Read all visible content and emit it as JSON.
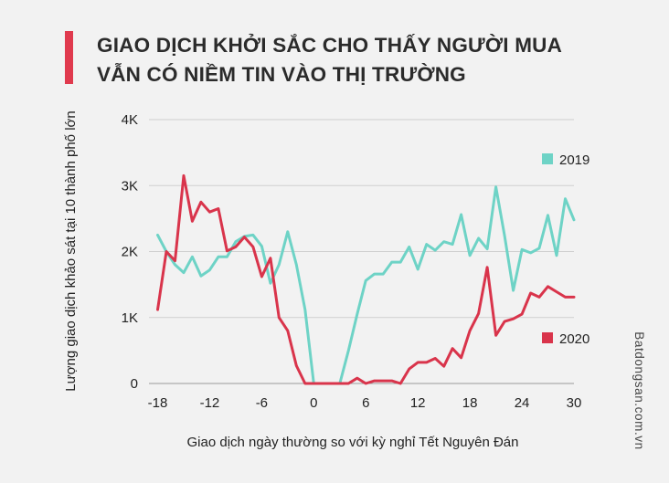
{
  "title_lines": [
    "GIAO DỊCH KHỞI SẮC CHO THẤY NGƯỜI MUA",
    "VẪN CÓ NIỀM TIN VÀO THỊ TRƯỜNG"
  ],
  "watermark": "Batdongsan.com.vn",
  "colors": {
    "accent": "#e03a4e",
    "series_2019": "#6ed3c6",
    "series_2020": "#d9344b",
    "grid": "#cfcfcf"
  },
  "chart_data": {
    "type": "line",
    "title": "GIAO DỊCH KHỞI SẮC CHO THẤY NGƯỜI MUA VẪN CÓ NIỀM TIN VÀO THỊ TRƯỜNG",
    "xlabel": "Giao dịch ngày thường so với kỳ nghỉ Tết Nguyên Đán",
    "ylabel": "Lượng giao dịch khảo sát tại 10 thành phố lớn",
    "xlim": [
      -19,
      30
    ],
    "ylim": [
      0,
      4000
    ],
    "x_ticks": [
      -18,
      -12,
      -6,
      0,
      6,
      12,
      18,
      24,
      30
    ],
    "x_tick_labels": [
      "-18",
      "-12",
      "-6",
      "0",
      "6",
      "12",
      "18",
      "24",
      "30"
    ],
    "y_ticks": [
      0,
      1000,
      2000,
      3000,
      4000
    ],
    "y_tick_labels": [
      "0",
      "1K",
      "2K",
      "3K",
      "4K"
    ],
    "grid": "horizontal",
    "legend": "inline-right",
    "series": [
      {
        "name": "2019",
        "color": "#6ed3c6",
        "points": [
          [
            -18,
            2250
          ],
          [
            -17,
            2000
          ],
          [
            -16,
            1800
          ],
          [
            -15,
            1680
          ],
          [
            -14,
            1920
          ],
          [
            -13,
            1630
          ],
          [
            -12,
            1720
          ],
          [
            -11,
            1920
          ],
          [
            -10,
            1920
          ],
          [
            -9,
            2150
          ],
          [
            -8,
            2230
          ],
          [
            -7,
            2250
          ],
          [
            -6,
            2080
          ],
          [
            -5,
            1520
          ],
          [
            -4,
            1800
          ],
          [
            -3,
            2300
          ],
          [
            -2,
            1800
          ],
          [
            -1,
            1120
          ],
          [
            0,
            0
          ],
          [
            1,
            0
          ],
          [
            2,
            0
          ],
          [
            3,
            0
          ],
          [
            4,
            500
          ],
          [
            5,
            1050
          ],
          [
            6,
            1560
          ],
          [
            7,
            1660
          ],
          [
            8,
            1660
          ],
          [
            9,
            1840
          ],
          [
            10,
            1840
          ],
          [
            11,
            2070
          ],
          [
            12,
            1730
          ],
          [
            13,
            2110
          ],
          [
            14,
            2020
          ],
          [
            15,
            2150
          ],
          [
            16,
            2110
          ],
          [
            17,
            2560
          ],
          [
            18,
            1940
          ],
          [
            19,
            2200
          ],
          [
            20,
            2040
          ],
          [
            21,
            2980
          ],
          [
            22,
            2240
          ],
          [
            23,
            1410
          ],
          [
            24,
            2030
          ],
          [
            25,
            1980
          ],
          [
            26,
            2050
          ],
          [
            27,
            2550
          ],
          [
            28,
            1940
          ],
          [
            29,
            2800
          ],
          [
            30,
            2480
          ]
        ]
      },
      {
        "name": "2020",
        "color": "#d9344b",
        "points": [
          [
            -18,
            1120
          ],
          [
            -17,
            2000
          ],
          [
            -16,
            1860
          ],
          [
            -15,
            3150
          ],
          [
            -14,
            2460
          ],
          [
            -13,
            2750
          ],
          [
            -12,
            2600
          ],
          [
            -11,
            2650
          ],
          [
            -10,
            2010
          ],
          [
            -9,
            2070
          ],
          [
            -8,
            2220
          ],
          [
            -7,
            2070
          ],
          [
            -6,
            1620
          ],
          [
            -5,
            1900
          ],
          [
            -4,
            1000
          ],
          [
            -3,
            800
          ],
          [
            -2,
            270
          ],
          [
            -1,
            0
          ],
          [
            0,
            0
          ],
          [
            1,
            0
          ],
          [
            2,
            0
          ],
          [
            3,
            0
          ],
          [
            4,
            0
          ],
          [
            5,
            80
          ],
          [
            6,
            0
          ],
          [
            7,
            40
          ],
          [
            8,
            40
          ],
          [
            9,
            40
          ],
          [
            10,
            0
          ],
          [
            11,
            220
          ],
          [
            12,
            320
          ],
          [
            13,
            320
          ],
          [
            14,
            380
          ],
          [
            15,
            260
          ],
          [
            16,
            530
          ],
          [
            17,
            390
          ],
          [
            18,
            800
          ],
          [
            19,
            1060
          ],
          [
            20,
            1760
          ],
          [
            21,
            730
          ],
          [
            22,
            940
          ],
          [
            23,
            980
          ],
          [
            24,
            1050
          ],
          [
            25,
            1370
          ],
          [
            26,
            1310
          ],
          [
            27,
            1470
          ],
          [
            28,
            1390
          ],
          [
            29,
            1310
          ],
          [
            30,
            1310
          ]
        ]
      }
    ]
  }
}
